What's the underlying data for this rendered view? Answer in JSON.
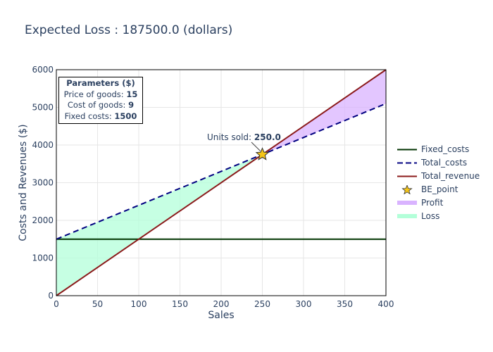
{
  "title": "Expected Loss : 187500.0 (dollars)",
  "parameters": {
    "heading": "Parameters ($)",
    "price_label": "Price of goods:",
    "price_value": "15",
    "cost_label": "Cost of goods:",
    "cost_value": "9",
    "fixed_label": "Fixed costs:",
    "fixed_value": "1500"
  },
  "annotation": {
    "label": "Units sold:",
    "value": "250.0"
  },
  "legend": [
    {
      "label": "Fixed_costs",
      "color": "#003300",
      "style": "solid"
    },
    {
      "label": "Total_costs",
      "color": "#000080",
      "style": "dash"
    },
    {
      "label": "Total_revenue",
      "color": "#8b1a1a",
      "style": "solid"
    },
    {
      "label": "BE_point",
      "color": "#f5c518",
      "style": "star"
    },
    {
      "label": "Profit",
      "color": "#d9b3ff",
      "style": "fill"
    },
    {
      "label": "Loss",
      "color": "#b3ffd9",
      "style": "fill"
    }
  ],
  "chart_data": {
    "type": "line",
    "title": "Expected Loss : 187500.0 (dollars)",
    "xlabel": "Sales",
    "ylabel": "Costs and Revenues ($)",
    "xlim": [
      0,
      400
    ],
    "ylim": [
      0,
      6000
    ],
    "xticks": [
      0,
      50,
      100,
      150,
      200,
      250,
      300,
      350,
      400
    ],
    "yticks": [
      0,
      1000,
      2000,
      3000,
      4000,
      5000,
      6000
    ],
    "grid": true,
    "legend_position": "right",
    "series": [
      {
        "name": "Fixed_costs",
        "x": [
          0,
          400
        ],
        "y": [
          1500,
          1500
        ],
        "color": "#003300",
        "dash": "solid"
      },
      {
        "name": "Total_costs",
        "x": [
          0,
          400
        ],
        "y": [
          1500,
          5100
        ],
        "color": "#000080",
        "dash": "dash"
      },
      {
        "name": "Total_revenue",
        "x": [
          0,
          400
        ],
        "y": [
          0,
          6000
        ],
        "color": "#8b1a1a",
        "dash": "solid"
      },
      {
        "name": "BE_point",
        "x": [
          250
        ],
        "y": [
          3750
        ],
        "color": "#f5c518",
        "marker": "star"
      }
    ],
    "fills": [
      {
        "name": "Profit",
        "x_range": [
          250,
          400
        ],
        "between": [
          "Total_costs",
          "Total_revenue"
        ],
        "color": "#d9b3ff"
      },
      {
        "name": "Loss",
        "x_range": [
          0,
          250
        ],
        "between": [
          "Total_revenue",
          "Total_costs"
        ],
        "color": "#b3ffd9"
      }
    ]
  }
}
